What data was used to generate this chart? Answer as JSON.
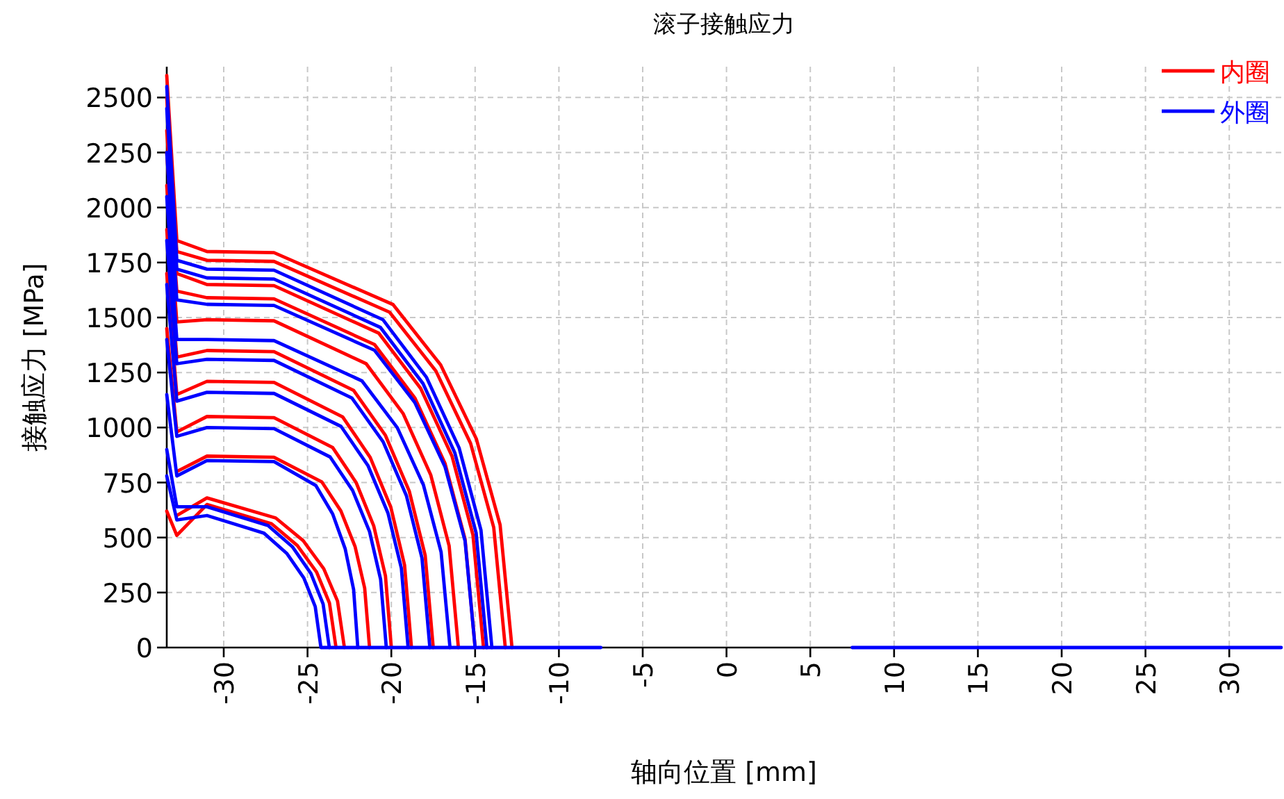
{
  "chart_data": {
    "type": "line",
    "title": "滚子接触应力",
    "xlabel": "轴向位置 [mm]",
    "ylabel": "接触应力 [MPa]",
    "xlim": [
      -33.4,
      33.1
    ],
    "ylim": [
      0,
      2640
    ],
    "xticks": [
      -30,
      -25,
      -20,
      -15,
      -10,
      -5,
      0,
      5,
      10,
      15,
      20,
      25,
      30
    ],
    "yticks": [
      0,
      250,
      500,
      750,
      1000,
      1250,
      1500,
      1750,
      2000,
      2250,
      2500
    ],
    "grid": true,
    "legend": "top right",
    "line_style": "solid",
    "marker": "none",
    "series": [
      {
        "name": "内圈",
        "color": "#ff0000",
        "x": [
          -33.4,
          -32.8,
          -31,
          -27,
          -19.9,
          -17.06,
          -14.93,
          -13.51,
          -12.8
        ],
        "values": [
          2600,
          1850,
          1800,
          1795,
          1559,
          1285,
          949,
          558,
          0
        ]
      },
      {
        "color": "#ff0000",
        "x": [
          -33.4,
          -32.8,
          -31,
          -27,
          -20.1,
          -17.34,
          -15.27,
          -13.89,
          -13.2
        ],
        "values": [
          2500,
          1800,
          1760,
          1755,
          1524,
          1257,
          928,
          546,
          0
        ]
      },
      {
        "color": "#ff0000",
        "x": [
          -33.4,
          -32.8,
          -31,
          -27,
          -20.75,
          -18.25,
          -16.38,
          -15.13,
          -14.5
        ],
        "values": [
          2350,
          1700,
          1650,
          1645,
          1429,
          1178,
          870,
          512,
          0
        ]
      },
      {
        "color": "#ff0000",
        "x": [
          -33.4,
          -32.8,
          -31,
          -27,
          -21,
          -18.6,
          -16.8,
          -15.6,
          -15
        ],
        "values": [
          2250,
          1620,
          1590,
          1585,
          1377,
          1135,
          838,
          493,
          0
        ]
      },
      {
        "color": "#ff0000",
        "x": [
          -33.4,
          -32.8,
          -31,
          -27,
          -21.5,
          -19.3,
          -17.65,
          -16.55,
          -16
        ],
        "values": [
          2100,
          1480,
          1490,
          1485,
          1290,
          1064,
          785,
          462,
          0
        ]
      },
      {
        "color": "#ff0000",
        "x": [
          -33.4,
          -32.8,
          -31,
          -27,
          -22.25,
          -20.35,
          -18.93,
          -17.98,
          -17.5
        ],
        "values": [
          1900,
          1320,
          1350,
          1345,
          1169,
          964,
          711,
          419,
          0
        ]
      },
      {
        "color": "#ff0000",
        "x": [
          -33.4,
          -32.8,
          -31,
          -27,
          -22.9,
          -21.26,
          -20.03,
          -19.21,
          -18.8
        ],
        "values": [
          1700,
          1150,
          1210,
          1205,
          1048,
          864,
          638,
          375,
          0
        ]
      },
      {
        "color": "#ff0000",
        "x": [
          -33.4,
          -32.8,
          -31,
          -27,
          -23.5,
          -22.1,
          -21.05,
          -20.35,
          -20
        ],
        "values": [
          1450,
          980,
          1050,
          1045,
          909,
          750,
          553,
          326,
          0
        ]
      },
      {
        "color": "#ff0000",
        "x": [
          -32.8,
          -31,
          -27,
          -24.15,
          -23.01,
          -22.16,
          -21.59,
          -21.3
        ],
        "values": [
          800,
          870,
          865,
          753,
          621,
          458,
          270,
          0
        ]
      },
      {
        "color": "#ff0000",
        "x": [
          -32.8,
          -31,
          -26.9,
          -25.26,
          -24.03,
          -23.21,
          -22.8
        ],
        "values": [
          600,
          680,
          589,
          486,
          358,
          211,
          0
        ]
      },
      {
        "color": "#ff0000",
        "x": [
          -33.4,
          -32.8,
          -31,
          -27.15,
          -25.61,
          -24.46,
          -23.69,
          -23.3
        ],
        "values": [
          620,
          510,
          650,
          563,
          464,
          343,
          202,
          0
        ]
      },
      {
        "name": "外圈",
        "color": "#0000ff",
        "x": [
          -33.4,
          -32.8,
          -31,
          -27,
          -20.5,
          -17.9,
          -15.95,
          -14.65,
          -14
        ],
        "values": [
          2550,
          1760,
          1720,
          1715,
          1490,
          1228,
          906,
          533,
          0
        ]
      },
      {
        "color": "#0000ff",
        "x": [
          -33.4,
          -32.8,
          -31,
          -27,
          -20.65,
          -18.11,
          -16.21,
          -14.94,
          -14.3
        ],
        "values": [
          2450,
          1720,
          1680,
          1675,
          1455,
          1200,
          885,
          521,
          0
        ]
      },
      {
        "color": "#0000ff",
        "x": [
          -33.4,
          -32.8,
          -31,
          -27,
          -21,
          -18.6,
          -16.8,
          -15.6,
          -15
        ],
        "values": [
          2250,
          1580,
          1560,
          1555,
          1351,
          1114,
          822,
          484,
          0
        ]
      },
      {
        "color": "#0000ff",
        "x": [
          -33.4,
          -32.8,
          -31,
          -27,
          -21.75,
          -19.65,
          -18.08,
          -17.03,
          -16.5
        ],
        "values": [
          2050,
          1400,
          1400,
          1395,
          1212,
          1000,
          738,
          434,
          0
        ]
      },
      {
        "color": "#0000ff",
        "x": [
          -33.4,
          -32.8,
          -31,
          -27,
          -22.35,
          -20.49,
          -19.1,
          -18.17,
          -17.7
        ],
        "values": [
          1850,
          1290,
          1310,
          1305,
          1134,
          935,
          690,
          406,
          0
        ]
      },
      {
        "color": "#0000ff",
        "x": [
          -33.4,
          -32.8,
          -31,
          -27,
          -23,
          -21.4,
          -20.2,
          -19.4,
          -19
        ],
        "values": [
          1650,
          1120,
          1160,
          1155,
          1005,
          828,
          611,
          360,
          0
        ]
      },
      {
        "color": "#0000ff",
        "x": [
          -33.4,
          -32.8,
          -31,
          -27,
          -23.65,
          -22.31,
          -21.3,
          -20.64,
          -20.3
        ],
        "values": [
          1400,
          960,
          1000,
          995,
          866,
          714,
          527,
          310,
          0
        ]
      },
      {
        "color": "#0000ff",
        "x": [
          -33.4,
          -32.8,
          -31,
          -27,
          -24.5,
          -23.5,
          -22.75,
          -22.25,
          -22
        ],
        "values": [
          1150,
          780,
          850,
          845,
          736,
          607,
          448,
          264,
          0
        ]
      },
      {
        "color": "#0000ff",
        "x": [
          -33.4,
          -32.8,
          -31,
          -27.35,
          -25.89,
          -24.8,
          -24.07,
          -23.7
        ],
        "values": [
          900,
          640,
          640,
          554,
          457,
          337,
          198,
          0
        ]
      },
      {
        "color": "#0000ff",
        "x": [
          -33.4,
          -32.8,
          -31,
          -27.6,
          -26.24,
          -25.22,
          -24.54,
          -24.2,
          -7.5,
          null,
          7.5,
          33.1
        ],
        "values": [
          780,
          580,
          600,
          520,
          428,
          316,
          186,
          0,
          0,
          null,
          0,
          0
        ]
      }
    ]
  }
}
